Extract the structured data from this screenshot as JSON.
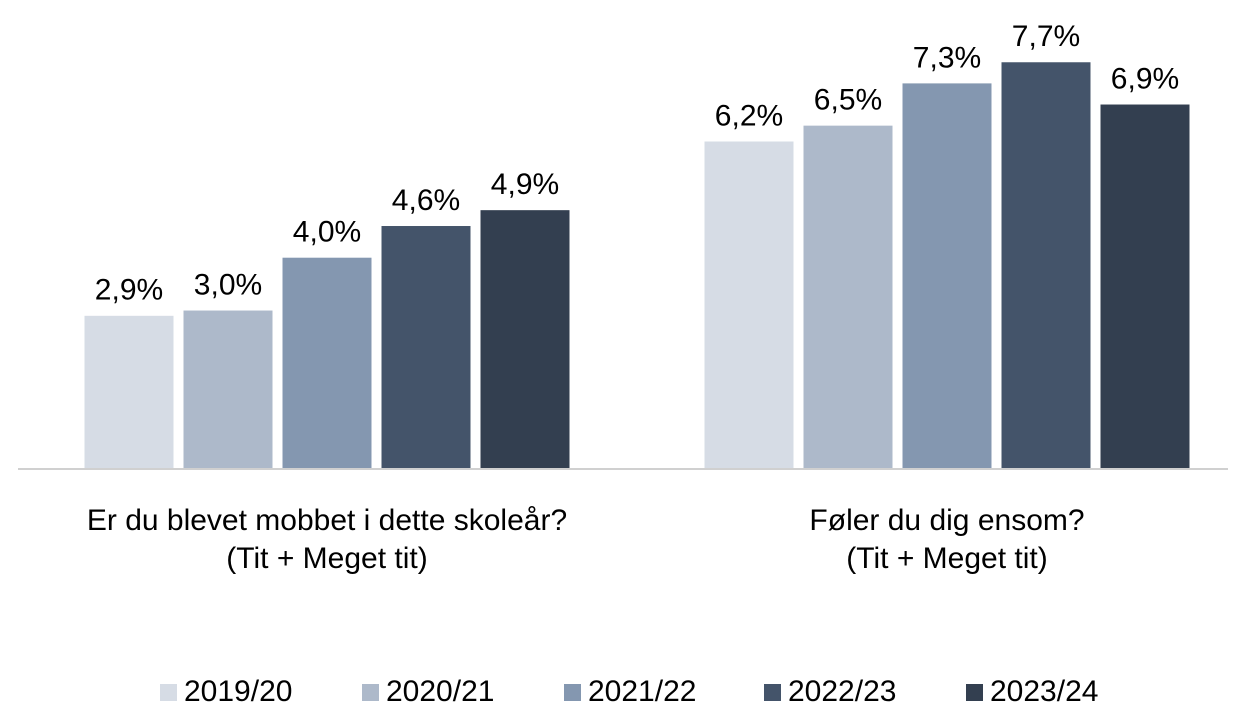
{
  "chart_data": {
    "type": "bar",
    "categories": [
      [
        "Er du blevet mobbet i dette skoleår?",
        "(Tit + Meget tit)"
      ],
      [
        "Føler du dig ensom?",
        "(Tit + Meget tit)"
      ]
    ],
    "series": [
      {
        "name": "2019/20",
        "color": "#d6dce5",
        "values": [
          2.9,
          6.2
        ],
        "value_labels": [
          "2,9%",
          "6,2%"
        ]
      },
      {
        "name": "2020/21",
        "color": "#adb9ca",
        "values": [
          3.0,
          6.5
        ],
        "value_labels": [
          "3,0%",
          "6,5%"
        ]
      },
      {
        "name": "2021/22",
        "color": "#8497b0",
        "values": [
          4.0,
          7.3
        ],
        "value_labels": [
          "4,0%",
          "7,3%"
        ]
      },
      {
        "name": "2022/23",
        "color": "#44546a",
        "values": [
          4.6,
          7.7
        ],
        "value_labels": [
          "4,6%",
          "7,7%"
        ]
      },
      {
        "name": "2023/24",
        "color": "#333f50",
        "values": [
          4.9,
          6.9
        ],
        "value_labels": [
          "4,9%",
          "6,9%"
        ]
      }
    ],
    "ylim": [
      0,
      8.5
    ],
    "legend": "bottom"
  }
}
